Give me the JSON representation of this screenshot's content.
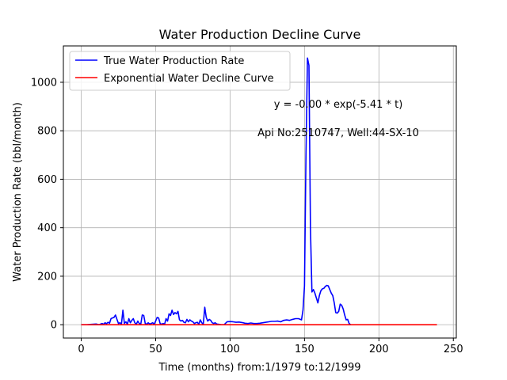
{
  "chart_data": {
    "type": "line",
    "title": "Water Production Decline Curve",
    "xlabel": "Time (months) from:1/1979 to:12/1999",
    "ylabel": "Water Production Rate (bbl/month)",
    "xlim": [
      -12,
      252
    ],
    "ylim": [
      -55,
      1150
    ],
    "xticks": [
      0,
      50,
      100,
      150,
      200,
      250
    ],
    "yticks": [
      0,
      200,
      400,
      600,
      800,
      1000
    ],
    "grid": true,
    "legend_position": "top-left",
    "annotations": [
      "y = -0.00 * exp(-5.41 * t)",
      "Api No:2510747, Well:44-SX-10"
    ],
    "series": [
      {
        "name": "True Water Production Rate",
        "color": "#0000ff",
        "x": [
          0,
          2,
          4,
          6,
          8,
          10,
          12,
          14,
          15,
          16,
          17,
          18,
          19,
          20,
          21,
          22,
          23,
          24,
          25,
          26,
          27,
          28,
          29,
          30,
          31,
          32,
          33,
          34,
          35,
          36,
          37,
          38,
          39,
          40,
          41,
          42,
          43,
          44,
          45,
          46,
          47,
          48,
          49,
          50,
          51,
          52,
          53,
          54,
          55,
          56,
          57,
          58,
          59,
          60,
          61,
          62,
          63,
          64,
          65,
          66,
          67,
          68,
          69,
          70,
          71,
          72,
          73,
          74,
          75,
          76,
          77,
          78,
          79,
          80,
          81,
          82,
          83,
          84,
          85,
          86,
          87,
          88,
          89,
          90,
          91,
          92,
          93,
          94,
          95,
          96,
          98,
          100,
          102,
          104,
          106,
          108,
          110,
          112,
          114,
          116,
          118,
          120,
          122,
          124,
          126,
          128,
          130,
          132,
          134,
          136,
          138,
          140,
          142,
          144,
          146,
          148,
          149,
          150,
          151,
          152,
          153,
          154,
          155,
          156,
          157,
          158,
          159,
          160,
          161,
          162,
          163,
          164,
          165,
          166,
          167,
          168,
          169,
          170,
          171,
          172,
          173,
          174,
          175,
          176,
          177,
          178,
          179,
          180,
          181
        ],
        "values": [
          0,
          0,
          0,
          1,
          2,
          3,
          0,
          5,
          2,
          8,
          4,
          10,
          6,
          25,
          28,
          30,
          40,
          22,
          5,
          8,
          2,
          60,
          5,
          12,
          2,
          25,
          8,
          18,
          25,
          8,
          2,
          15,
          5,
          2,
          40,
          38,
          5,
          2,
          8,
          3,
          5,
          8,
          2,
          15,
          30,
          28,
          5,
          2,
          5,
          2,
          25,
          15,
          45,
          38,
          60,
          42,
          50,
          45,
          55,
          20,
          15,
          18,
          10,
          8,
          22,
          12,
          20,
          15,
          12,
          5,
          8,
          10,
          2,
          20,
          8,
          2,
          72,
          30,
          15,
          22,
          18,
          8,
          5,
          8,
          3,
          2,
          1,
          0,
          0,
          0,
          12,
          13,
          12,
          10,
          11,
          9,
          6,
          5,
          7,
          5,
          5,
          6,
          8,
          10,
          12,
          14,
          14,
          15,
          12,
          18,
          20,
          18,
          22,
          25,
          25,
          20,
          60,
          160,
          700,
          1100,
          1070,
          400,
          135,
          145,
          130,
          110,
          90,
          120,
          140,
          148,
          150,
          158,
          162,
          160,
          145,
          130,
          120,
          90,
          50,
          48,
          55,
          85,
          80,
          65,
          40,
          20,
          22,
          5,
          0
        ]
      },
      {
        "name": "Exponential Water Decline Curve",
        "color": "#ff0000",
        "x": [
          0,
          239
        ],
        "values": [
          0,
          0
        ]
      }
    ]
  }
}
